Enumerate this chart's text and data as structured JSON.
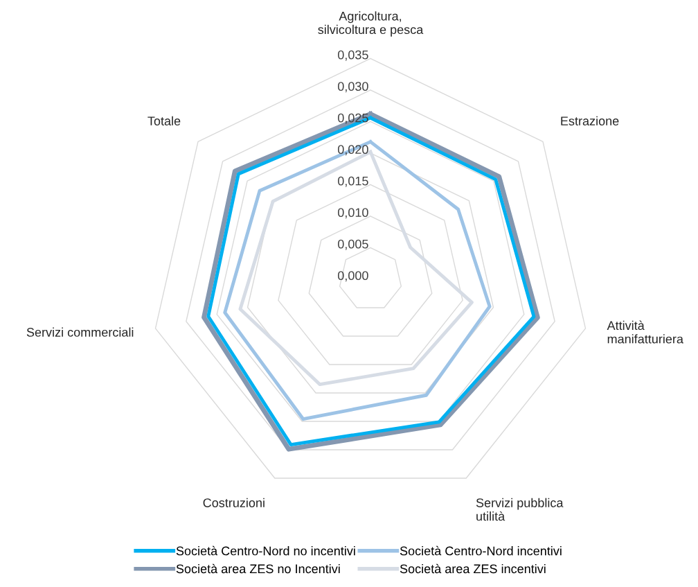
{
  "chart_data": {
    "type": "radar",
    "categories": [
      "Agricoltura,\nsilvicoltura e pesca",
      "Estrazione",
      "Attività\nmanifatturiera",
      "Servizi pubblica\nutilità",
      "Costruzioni",
      "Servizi commerciali",
      "Totale"
    ],
    "ylim": [
      0,
      0.035
    ],
    "yticks": [
      {
        "value": 0,
        "label": "0,000"
      },
      {
        "value": 0.005,
        "label": "0,005"
      },
      {
        "value": 0.01,
        "label": "0,010"
      },
      {
        "value": 0.015,
        "label": "0,015"
      },
      {
        "value": 0.02,
        "label": "0,020"
      },
      {
        "value": 0.025,
        "label": "0,025"
      },
      {
        "value": 0.03,
        "label": "0,030"
      },
      {
        "value": 0.035,
        "label": "0,035"
      }
    ],
    "grid": true,
    "legend": "bottom",
    "marker": "none",
    "line_style": "solid",
    "series": [
      {
        "name": "Società Centro-Nord no incentivi",
        "color": "#00b0f0",
        "values": [
          0.0256,
          0.0254,
          0.0266,
          0.0251,
          0.0291,
          0.0264,
          0.0268
        ]
      },
      {
        "name": "Società Centro-Nord incentivi",
        "color": "#9dc3e6",
        "values": [
          0.0218,
          0.0178,
          0.0194,
          0.0204,
          0.0246,
          0.0237,
          0.0225
        ]
      },
      {
        "name": "Società area ZES no Incentivi",
        "color": "#8497b0",
        "values": [
          0.0262,
          0.0261,
          0.0272,
          0.0256,
          0.0299,
          0.0271,
          0.0275
        ]
      },
      {
        "name": "Società area ZES incentivi",
        "color": "#d6dce5",
        "values": [
          0.0202,
          0.0081,
          0.0165,
          0.0157,
          0.0185,
          0.0212,
          0.0198
        ]
      }
    ]
  }
}
